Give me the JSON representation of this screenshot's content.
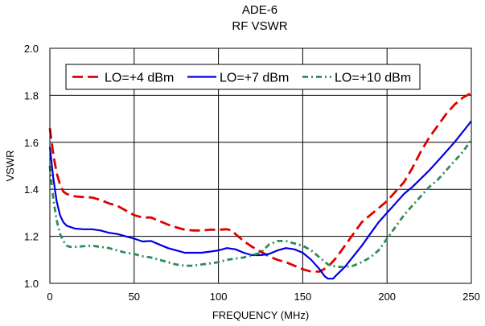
{
  "chart_data": {
    "type": "line",
    "title": "ADE-6",
    "subtitle": "RF VSWR",
    "xlabel": "FREQUENCY (MHz)",
    "ylabel": "VSWR",
    "xlim": [
      0,
      250
    ],
    "ylim": [
      1.0,
      2.0
    ],
    "x_ticks": [
      0,
      50,
      100,
      150,
      200,
      250
    ],
    "y_ticks": [
      1.0,
      1.2,
      1.4,
      1.6,
      1.8,
      2.0
    ],
    "x_tick_labels": [
      "0",
      "50",
      "100",
      "150",
      "200",
      "250"
    ],
    "y_tick_labels": [
      "1.0",
      "1.2",
      "1.4",
      "1.6",
      "1.8",
      "2.0"
    ],
    "grid": true,
    "legend_position": "top",
    "series": [
      {
        "name": "LO=+4 dBm",
        "color": "#e00000",
        "dash": "long-dash",
        "x": [
          0,
          2,
          4,
          6,
          8,
          10,
          15,
          20,
          25,
          30,
          35,
          40,
          45,
          50,
          55,
          60,
          65,
          70,
          75,
          80,
          85,
          90,
          95,
          100,
          105,
          108,
          110,
          115,
          120,
          125,
          130,
          135,
          140,
          145,
          150,
          155,
          160,
          165,
          170,
          175,
          180,
          185,
          190,
          195,
          200,
          205,
          210,
          215,
          220,
          225,
          230,
          235,
          240,
          245,
          250
        ],
        "y": [
          1.66,
          1.55,
          1.47,
          1.42,
          1.39,
          1.38,
          1.37,
          1.367,
          1.365,
          1.355,
          1.34,
          1.33,
          1.31,
          1.29,
          1.28,
          1.28,
          1.265,
          1.25,
          1.238,
          1.228,
          1.225,
          1.225,
          1.228,
          1.228,
          1.23,
          1.225,
          1.21,
          1.18,
          1.155,
          1.135,
          1.115,
          1.1,
          1.09,
          1.075,
          1.06,
          1.05,
          1.05,
          1.07,
          1.11,
          1.16,
          1.21,
          1.26,
          1.29,
          1.32,
          1.35,
          1.39,
          1.43,
          1.49,
          1.56,
          1.62,
          1.67,
          1.72,
          1.76,
          1.79,
          1.81
        ]
      },
      {
        "name": "LO=+7 dBm",
        "color": "#0000e0",
        "dash": "solid",
        "x": [
          0,
          2,
          4,
          6,
          8,
          10,
          12,
          15,
          20,
          25,
          30,
          35,
          40,
          45,
          50,
          55,
          60,
          65,
          70,
          75,
          80,
          85,
          90,
          95,
          100,
          105,
          110,
          115,
          120,
          125,
          130,
          135,
          140,
          145,
          150,
          155,
          160,
          163,
          165,
          168,
          170,
          175,
          180,
          185,
          190,
          195,
          200,
          205,
          210,
          215,
          220,
          225,
          230,
          235,
          240,
          245,
          250
        ],
        "y": [
          1.58,
          1.45,
          1.35,
          1.29,
          1.26,
          1.245,
          1.24,
          1.233,
          1.23,
          1.23,
          1.225,
          1.215,
          1.21,
          1.2,
          1.19,
          1.178,
          1.18,
          1.165,
          1.15,
          1.14,
          1.13,
          1.13,
          1.13,
          1.135,
          1.14,
          1.15,
          1.145,
          1.13,
          1.12,
          1.12,
          1.125,
          1.14,
          1.15,
          1.145,
          1.13,
          1.1,
          1.06,
          1.03,
          1.02,
          1.02,
          1.035,
          1.07,
          1.115,
          1.16,
          1.21,
          1.26,
          1.3,
          1.34,
          1.38,
          1.41,
          1.445,
          1.48,
          1.52,
          1.56,
          1.6,
          1.645,
          1.69
        ]
      },
      {
        "name": "LO=+10 dBm",
        "color": "#2e8b57",
        "dash": "dash-dot",
        "x": [
          0,
          2,
          4,
          6,
          8,
          10,
          12,
          15,
          20,
          25,
          30,
          35,
          40,
          45,
          50,
          55,
          60,
          65,
          70,
          75,
          80,
          85,
          90,
          95,
          100,
          105,
          110,
          115,
          120,
          125,
          130,
          135,
          140,
          145,
          150,
          155,
          160,
          165,
          170,
          175,
          180,
          185,
          190,
          195,
          200,
          205,
          210,
          215,
          220,
          225,
          230,
          235,
          240,
          245,
          250
        ],
        "y": [
          1.5,
          1.36,
          1.27,
          1.21,
          1.18,
          1.16,
          1.155,
          1.155,
          1.158,
          1.16,
          1.155,
          1.15,
          1.14,
          1.13,
          1.125,
          1.115,
          1.11,
          1.1,
          1.09,
          1.08,
          1.075,
          1.075,
          1.08,
          1.085,
          1.09,
          1.1,
          1.105,
          1.11,
          1.12,
          1.13,
          1.165,
          1.18,
          1.18,
          1.17,
          1.16,
          1.14,
          1.11,
          1.08,
          1.07,
          1.07,
          1.075,
          1.09,
          1.11,
          1.14,
          1.19,
          1.24,
          1.29,
          1.33,
          1.37,
          1.41,
          1.44,
          1.48,
          1.52,
          1.56,
          1.61
        ]
      }
    ]
  }
}
